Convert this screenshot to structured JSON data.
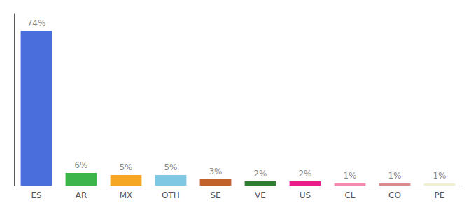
{
  "chart_data": {
    "type": "bar",
    "categories": [
      "ES",
      "AR",
      "MX",
      "OTH",
      "SE",
      "VE",
      "US",
      "CL",
      "CO",
      "PE"
    ],
    "values": [
      74,
      6,
      5,
      5,
      3,
      2,
      2,
      1,
      1,
      1
    ],
    "value_labels": [
      "74%",
      "6%",
      "5%",
      "5%",
      "3%",
      "2%",
      "2%",
      "1%",
      "1%",
      "1%"
    ],
    "colors": [
      "#4a6edb",
      "#3cb54a",
      "#f5a623",
      "#7ec8e3",
      "#c0622a",
      "#2e7d32",
      "#e91e8c",
      "#f48cb1",
      "#d98a8a",
      "#f0f0d0"
    ],
    "ylim": [
      0,
      82
    ],
    "data_labels": true,
    "tick_labels": "x",
    "grid": false
  }
}
